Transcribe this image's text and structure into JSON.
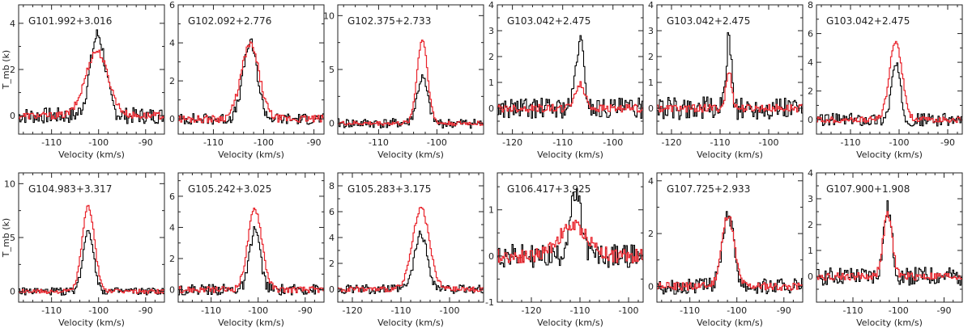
{
  "chart_data": [
    {
      "type": "line",
      "title": "G101.992+3.016",
      "xlabel": "Velocity (km/s)",
      "ylabel": "T_mb (k)",
      "xlim": [
        -117,
        -86
      ],
      "ylim": [
        -0.8,
        4.8
      ],
      "xticks": [
        -110,
        -100,
        -90
      ],
      "yticks": [
        0,
        2,
        4
      ],
      "tick_labels_x": [
        "-110",
        "-100",
        "-90"
      ],
      "tick_labels_y": [
        "0",
        "2",
        "4"
      ],
      "series": [
        {
          "name": "black",
          "color": "#000000",
          "center": -100.3,
          "peak": 3.5,
          "width": 1.6,
          "noise": 0.35
        },
        {
          "name": "red",
          "color": "#e8222a",
          "center": -100.5,
          "peak": 2.8,
          "width": 2.4,
          "noise": 0.15
        }
      ]
    },
    {
      "type": "line",
      "title": "G102.092+2.776",
      "xlabel": "Velocity (km/s)",
      "ylabel": "",
      "xlim": [
        -117,
        -88
      ],
      "ylim": [
        -0.8,
        6
      ],
      "xticks": [
        -110,
        -100,
        -90
      ],
      "yticks": [
        0,
        2,
        4,
        6
      ],
      "tick_labels_x": [
        "-110",
        "-100",
        "-90"
      ],
      "tick_labels_y": [
        "0",
        "2",
        "4",
        "6"
      ],
      "series": [
        {
          "name": "black",
          "color": "#000000",
          "center": -102.8,
          "peak": 4.0,
          "width": 1.4,
          "noise": 0.3
        },
        {
          "name": "red",
          "color": "#e8222a",
          "center": -102.8,
          "peak": 3.9,
          "width": 1.8,
          "noise": 0.2
        }
      ]
    },
    {
      "type": "line",
      "title": "G102.375+2.733",
      "xlabel": "Velocity (km/s)",
      "ylabel": "",
      "xlim": [
        -117,
        -92
      ],
      "ylim": [
        -1,
        11
      ],
      "xticks": [
        -110,
        -100
      ],
      "yticks": [
        0,
        5,
        10
      ],
      "tick_labels_x": [
        "-110",
        "-100"
      ],
      "tick_labels_y": [
        "0",
        "5",
        "10"
      ],
      "series": [
        {
          "name": "black",
          "color": "#000000",
          "center": -102.6,
          "peak": 4.2,
          "width": 0.9,
          "noise": 0.45
        },
        {
          "name": "red",
          "color": "#e8222a",
          "center": -102.6,
          "peak": 7.8,
          "width": 0.9,
          "noise": 0.2
        }
      ]
    },
    {
      "type": "line",
      "title": "G103.042+2.475",
      "xlabel": "Velocity (km/s)",
      "ylabel": "",
      "xlim": [
        -123,
        -94
      ],
      "ylim": [
        -1,
        4
      ],
      "xticks": [
        -120,
        -110,
        -100
      ],
      "yticks": [
        0,
        1,
        2,
        3,
        4
      ],
      "tick_labels_x": [
        "-120",
        "-110",
        "-100"
      ],
      "tick_labels_y": [
        "0",
        "1",
        "2",
        "3",
        "4"
      ],
      "series": [
        {
          "name": "black",
          "color": "#000000",
          "center": -106.7,
          "peak": 2.6,
          "width": 0.8,
          "noise": 0.4
        },
        {
          "name": "red",
          "color": "#e8222a",
          "center": -106.7,
          "peak": 0.9,
          "width": 1.0,
          "noise": 0.15
        }
      ]
    },
    {
      "type": "line",
      "title": "G103.042+2.475",
      "xlabel": "Velocity (km/s)",
      "ylabel": "",
      "xlim": [
        -123,
        -93
      ],
      "ylim": [
        -1,
        4
      ],
      "xticks": [
        -120,
        -110,
        -100
      ],
      "yticks": [
        0,
        1,
        2,
        3,
        4
      ],
      "tick_labels_x": [
        "-120",
        "-110",
        "-100"
      ],
      "tick_labels_y": [
        "0",
        "1",
        "2",
        "3",
        "4"
      ],
      "series": [
        {
          "name": "black",
          "color": "#000000",
          "center": -108.3,
          "peak": 3.0,
          "width": 0.5,
          "noise": 0.45
        },
        {
          "name": "red",
          "color": "#e8222a",
          "center": -108.3,
          "peak": 1.4,
          "width": 0.6,
          "noise": 0.15
        }
      ]
    },
    {
      "type": "line",
      "title": "G103.042+2.475",
      "xlabel": "Velocity (km/s)",
      "ylabel": "",
      "xlim": [
        -117,
        -87
      ],
      "ylim": [
        -1,
        8
      ],
      "xticks": [
        -110,
        -100,
        -90
      ],
      "yticks": [
        0,
        2,
        4,
        6,
        8
      ],
      "tick_labels_x": [
        "-110",
        "-100",
        "-90"
      ],
      "tick_labels_y": [
        "0",
        "2",
        "4",
        "6",
        "8"
      ],
      "series": [
        {
          "name": "black",
          "color": "#000000",
          "center": -100.8,
          "peak": 3.8,
          "width": 0.9,
          "noise": 0.45
        },
        {
          "name": "red",
          "color": "#e8222a",
          "center": -100.8,
          "peak": 5.5,
          "width": 1.3,
          "noise": 0.2
        }
      ]
    },
    {
      "type": "line",
      "title": "G104.983+3.317",
      "xlabel": "Velocity (km/s)",
      "ylabel": "T_mb (k)",
      "xlim": [
        -117,
        -86
      ],
      "ylim": [
        -1,
        11
      ],
      "xticks": [
        -110,
        -100,
        -90
      ],
      "yticks": [
        0,
        5,
        10
      ],
      "tick_labels_x": [
        "-110",
        "-100",
        "-90"
      ],
      "tick_labels_y": [
        "0",
        "5",
        "10"
      ],
      "series": [
        {
          "name": "black",
          "color": "#000000",
          "center": -102.3,
          "peak": 5.8,
          "width": 1.1,
          "noise": 0.35
        },
        {
          "name": "red",
          "color": "#e8222a",
          "center": -102.3,
          "peak": 7.9,
          "width": 1.3,
          "noise": 0.2
        }
      ]
    },
    {
      "type": "line",
      "title": "G105.242+3.025",
      "xlabel": "Velocity (km/s)",
      "ylabel": "",
      "xlim": [
        -117,
        -86
      ],
      "ylim": [
        -0.8,
        7.5
      ],
      "xticks": [
        -110,
        -100,
        -90
      ],
      "yticks": [
        0,
        2,
        4,
        6
      ],
      "tick_labels_x": [
        "-110",
        "-100",
        "-90"
      ],
      "tick_labels_y": [
        "0",
        "2",
        "4",
        "6"
      ],
      "series": [
        {
          "name": "black",
          "color": "#000000",
          "center": -100.8,
          "peak": 3.9,
          "width": 1.1,
          "noise": 0.35
        },
        {
          "name": "red",
          "color": "#e8222a",
          "center": -100.8,
          "peak": 5.2,
          "width": 1.5,
          "noise": 0.2
        }
      ]
    },
    {
      "type": "line",
      "title": "G105.283+3.175",
      "xlabel": "Velocity (km/s)",
      "ylabel": "",
      "xlim": [
        -123,
        -93
      ],
      "ylim": [
        -1,
        9
      ],
      "xticks": [
        -120,
        -110,
        -100
      ],
      "yticks": [
        0,
        2,
        4,
        6,
        8
      ],
      "tick_labels_x": [
        "-120",
        "-110",
        "-100"
      ],
      "tick_labels_y": [
        "0",
        "2",
        "4",
        "6",
        "8"
      ],
      "series": [
        {
          "name": "black",
          "color": "#000000",
          "center": -106.0,
          "peak": 4.3,
          "width": 1.3,
          "noise": 0.35
        },
        {
          "name": "red",
          "color": "#e8222a",
          "center": -106.0,
          "peak": 6.3,
          "width": 1.7,
          "noise": 0.2
        }
      ]
    },
    {
      "type": "line",
      "title": "G106.417+3.925",
      "xlabel": "Velocity (km/s)",
      "ylabel": "",
      "xlim": [
        -127,
        -97
      ],
      "ylim": [
        -1,
        1.8
      ],
      "xticks": [
        -120,
        -110,
        -100
      ],
      "yticks": [
        -1,
        0,
        1
      ],
      "tick_labels_x": [
        "-120",
        "-110",
        "-100"
      ],
      "tick_labels_y": [
        "-1",
        "0",
        "1"
      ],
      "series": [
        {
          "name": "black",
          "color": "#000000",
          "center": -111.0,
          "peak": 1.3,
          "width": 1.2,
          "noise": 0.25
        },
        {
          "name": "red",
          "color": "#e8222a",
          "center": -111.5,
          "peak": 0.65,
          "width": 3.0,
          "noise": 0.15
        }
      ]
    },
    {
      "type": "line",
      "title": "G107.725+2.933",
      "xlabel": "Velocity (km/s)",
      "ylabel": "",
      "xlim": [
        -117,
        -86
      ],
      "ylim": [
        -0.6,
        4.3
      ],
      "xticks": [
        -110,
        -100,
        -90
      ],
      "yticks": [
        0,
        2,
        4
      ],
      "tick_labels_x": [
        "-110",
        "-100",
        "-90"
      ],
      "tick_labels_y": [
        "0",
        "2",
        "4"
      ],
      "series": [
        {
          "name": "black",
          "color": "#000000",
          "center": -102.0,
          "peak": 2.8,
          "width": 1.2,
          "noise": 0.3
        },
        {
          "name": "red",
          "color": "#e8222a",
          "center": -102.0,
          "peak": 2.7,
          "width": 1.3,
          "noise": 0.15
        }
      ]
    },
    {
      "type": "line",
      "title": "G107.900+1.908",
      "xlabel": "Velocity (km/s)",
      "ylabel": "",
      "xlim": [
        -118,
        -86
      ],
      "ylim": [
        -1,
        4
      ],
      "xticks": [
        -110,
        -100,
        -90
      ],
      "yticks": [
        0,
        1,
        2,
        3,
        4
      ],
      "tick_labels_x": [
        "-110",
        "-100",
        "-90"
      ],
      "tick_labels_y": [
        "0",
        "1",
        "2",
        "3",
        "4"
      ],
      "series": [
        {
          "name": "black",
          "color": "#000000",
          "center": -102.5,
          "peak": 2.6,
          "width": 0.9,
          "noise": 0.35
        },
        {
          "name": "red",
          "color": "#e8222a",
          "center": -102.5,
          "peak": 2.4,
          "width": 1.0,
          "noise": 0.15
        }
      ]
    }
  ]
}
